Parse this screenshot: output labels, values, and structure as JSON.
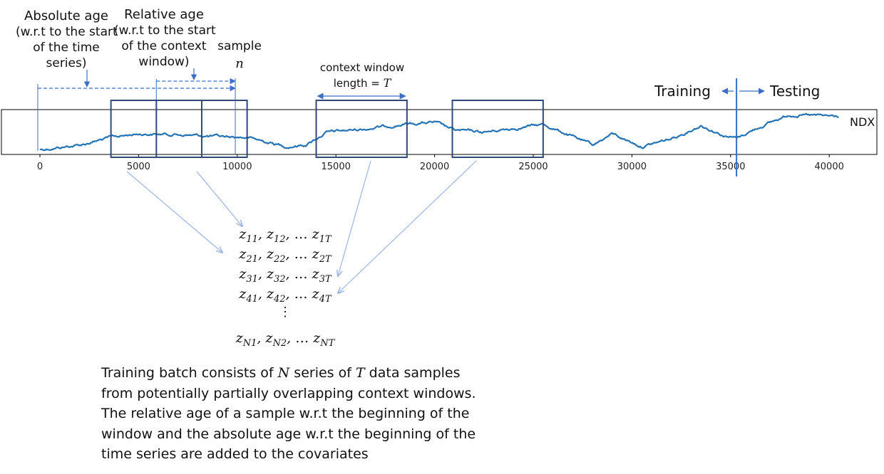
{
  "labels": {
    "absolute_age": [
      "Absolute age",
      "(w.r.t to the start",
      "of the time",
      "series)"
    ],
    "relative_age": [
      "Relative  age",
      "(w.r.t to the start",
      "of the context",
      "window)"
    ],
    "sample": "sample",
    "sample_var": "n",
    "context_window": [
      "context window",
      "length = "
    ],
    "context_window_var": "T",
    "training": "Training",
    "testing": "Testing",
    "series_name": "NDX"
  },
  "axis": {
    "ticks": [
      "0",
      "5000",
      "10000",
      "15000",
      "20000",
      "25000",
      "30000",
      "35000",
      "40000"
    ],
    "tick_values": [
      0,
      5000,
      10000,
      15000,
      20000,
      25000,
      30000,
      35000,
      40000
    ],
    "xlim": [
      -2000,
      42500
    ],
    "max_index": 40500,
    "split_index": 35300
  },
  "windows": [
    {
      "start": 3600,
      "end": 8200
    },
    {
      "start": 5900,
      "end": 10500
    },
    {
      "start": 14000,
      "end": 18600
    },
    {
      "start": 20900,
      "end": 25500
    }
  ],
  "series_profile": [
    [
      0,
      52
    ],
    [
      2000,
      46
    ],
    [
      3600,
      35
    ],
    [
      5000,
      30
    ],
    [
      7000,
      31
    ],
    [
      9000,
      34
    ],
    [
      10500,
      35
    ],
    [
      12500,
      48
    ],
    [
      13500,
      45
    ],
    [
      14500,
      28
    ],
    [
      16500,
      23
    ],
    [
      18600,
      16
    ],
    [
      20000,
      14
    ],
    [
      21000,
      25
    ],
    [
      22500,
      28
    ],
    [
      23500,
      24
    ],
    [
      25500,
      17
    ],
    [
      26500,
      28
    ],
    [
      28000,
      46
    ],
    [
      29000,
      30
    ],
    [
      30500,
      48
    ],
    [
      32000,
      37
    ],
    [
      33500,
      18
    ],
    [
      34800,
      34
    ],
    [
      35300,
      36
    ],
    [
      36500,
      20
    ],
    [
      38000,
      3
    ],
    [
      40500,
      6
    ]
  ],
  "series_style": {
    "color": "#2574b5"
  },
  "matrix": {
    "rows": [
      [
        [
          "z",
          "11"
        ],
        [
          "z",
          "12"
        ],
        [
          "z",
          "1T"
        ]
      ],
      [
        [
          "z",
          "21"
        ],
        [
          "z",
          "22"
        ],
        [
          "z",
          "2T"
        ]
      ],
      [
        [
          "z",
          "31"
        ],
        [
          "z",
          "32"
        ],
        [
          "z",
          "3T"
        ]
      ],
      [
        [
          "z",
          "41"
        ],
        [
          "z",
          "42"
        ],
        [
          "z",
          "4T"
        ]
      ],
      [
        [
          "z",
          "N1"
        ],
        [
          "z",
          "N2"
        ],
        [
          "z",
          "NT"
        ]
      ]
    ],
    "ellipsis": "…",
    "vdots": "⋮"
  },
  "caption": {
    "line1": {
      "a": "Training batch consists of ",
      "v1": "N",
      "b": " series of ",
      "v2": "T",
      "c": " data samples"
    },
    "lines": [
      "from potentially partially overlapping context windows.",
      "The relative age of a sample w.r.t the beginning of the",
      "window and the absolute age w.r.t the beginning of the",
      "time series are added to the covariates"
    ]
  }
}
